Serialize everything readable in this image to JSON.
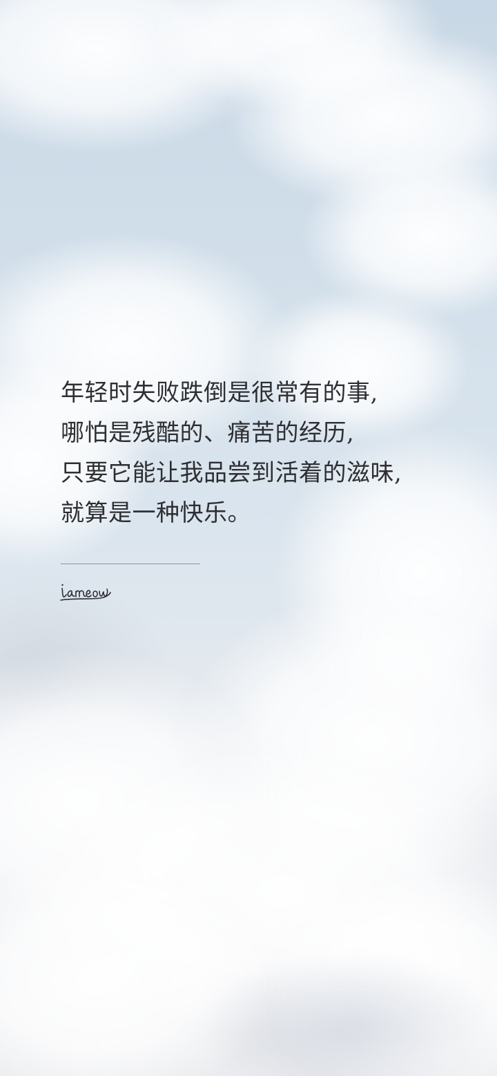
{
  "quote": {
    "lines": [
      "年轻时失败跌倒是很常有的事,",
      "哪怕是残酷的、痛苦的经历,",
      "只要它能让我品尝到活着的滋味,",
      "就算是一种快乐。"
    ]
  },
  "signature": {
    "text": "iameow"
  },
  "colors": {
    "text": "#2e2f33",
    "divider": "#8f959c",
    "sky_top": "#c9d8e6",
    "sky_bottom": "#ebecef"
  }
}
